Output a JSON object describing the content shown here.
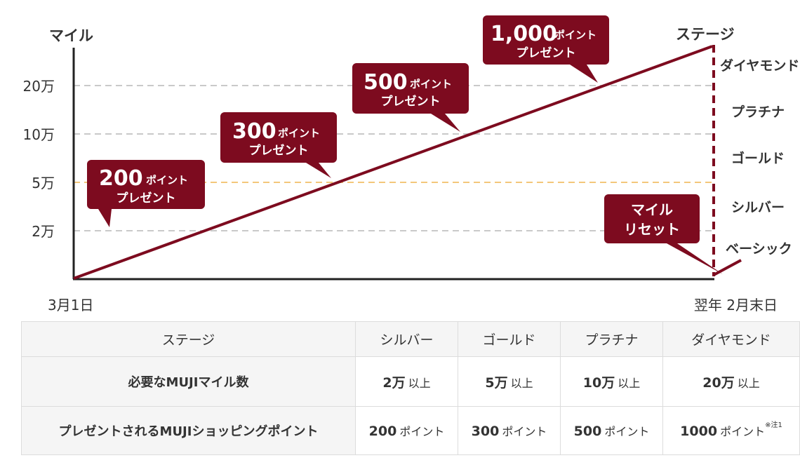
{
  "chart_data": {
    "type": "line",
    "y_axis_label": "マイル",
    "right_axis_label": "ステージ",
    "y_ticks": [
      "20万",
      "10万",
      "5万",
      "2万"
    ],
    "x_start_label": "3月1日",
    "x_end_label": "翌年 2月末日",
    "stages": [
      "ダイヤモンド",
      "プラチナ",
      "ゴールド",
      "シルバー",
      "ベーシック"
    ],
    "highlight_tick": "5万",
    "callouts": [
      {
        "amount": "200",
        "unit": "ポイント",
        "text": "プレゼント"
      },
      {
        "amount": "300",
        "unit": "ポイント",
        "text": "プレゼント"
      },
      {
        "amount": "500",
        "unit": "ポイント",
        "text": "プレゼント"
      },
      {
        "amount": "1,000",
        "unit": "ポイント",
        "text": "プレゼント"
      }
    ],
    "reset_callout": {
      "line1": "マイル",
      "line2": "リセット"
    },
    "colors": {
      "accent": "#7d0b1f",
      "highlight_grid": "#f3c77a",
      "grid": "#c9c9c9"
    }
  },
  "table": {
    "headers": [
      "ステージ",
      "シルバー",
      "ゴールド",
      "プラチナ",
      "ダイヤモンド"
    ],
    "rows": [
      {
        "label": "必要なMUJIマイル数",
        "cells": [
          {
            "num": "2万",
            "unit": "以上"
          },
          {
            "num": "5万",
            "unit": "以上"
          },
          {
            "num": "10万",
            "unit": "以上"
          },
          {
            "num": "20万",
            "unit": "以上"
          }
        ]
      },
      {
        "label": "プレゼントされるMUJIショッピングポイント",
        "cells": [
          {
            "num": "200",
            "unit": "ポイント"
          },
          {
            "num": "300",
            "unit": "ポイント"
          },
          {
            "num": "500",
            "unit": "ポイント"
          },
          {
            "num": "1000",
            "unit": "ポイント",
            "note": "※注1"
          }
        ]
      }
    ]
  }
}
